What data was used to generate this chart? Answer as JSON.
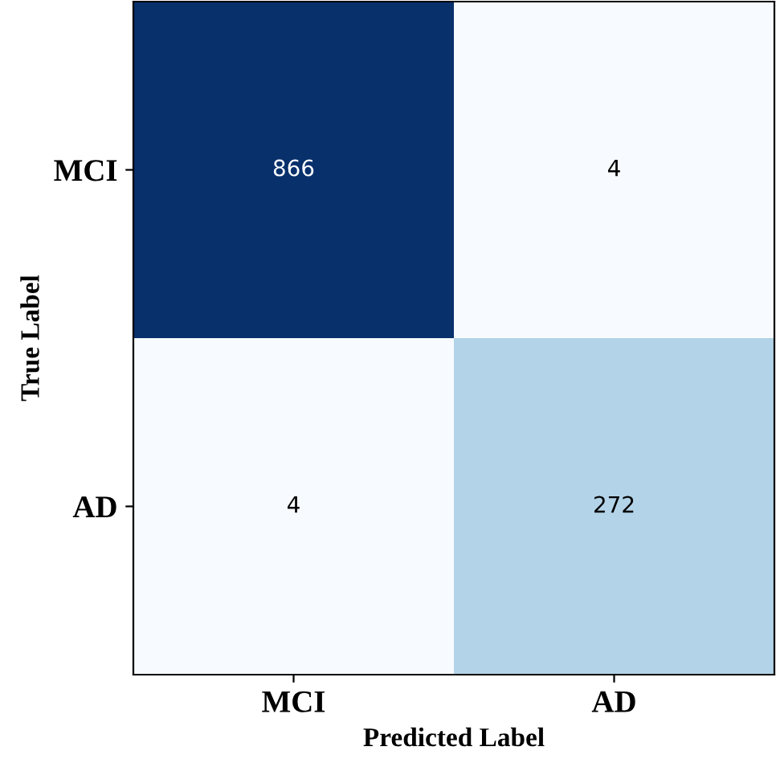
{
  "chart_data": {
    "type": "heatmap",
    "xlabel": "Predicted Label",
    "ylabel": "True Label",
    "categories": [
      "MCI",
      "AD"
    ],
    "y_categories": [
      "MCI",
      "AD"
    ],
    "cells": [
      [
        866,
        4
      ],
      [
        4,
        272
      ]
    ],
    "data_labels": true
  }
}
